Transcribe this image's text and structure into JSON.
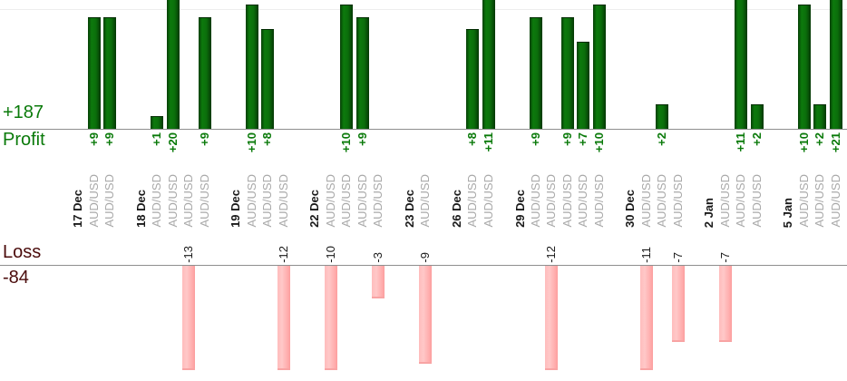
{
  "profit_panel": {
    "total": "+187",
    "label": "Profit"
  },
  "loss_panel": {
    "label": "Loss",
    "total": "-84"
  },
  "colors": {
    "profit_bar": "#0b720b",
    "profit_text": "#0a7a0a",
    "loss_bar": "#ffb3b3",
    "loss_heading_text": "#4a0b0b",
    "loss_value_text": "#1a1a1a",
    "date_text": "#1a1a1a",
    "pair_text": "#a9a9a9",
    "axis_line": "#8f8f8f",
    "gridline": "#ededed"
  },
  "chart_data": {
    "type": "bar",
    "title": "",
    "legend": [
      "Profit",
      "Loss"
    ],
    "profit_total": 187,
    "loss_total": -84,
    "groups": [
      {
        "date": "17 Dec",
        "trades": [
          {
            "pair": "AUD/USD",
            "value": 9
          },
          {
            "pair": "AUD/USD",
            "value": 9
          }
        ]
      },
      {
        "date": "18 Dec",
        "trades": [
          {
            "pair": "AUD/USD",
            "value": 1
          },
          {
            "pair": "AUD/USD",
            "value": 20
          },
          {
            "pair": "AUD/USD",
            "value": -13
          },
          {
            "pair": "AUD/USD",
            "value": 9
          }
        ]
      },
      {
        "date": "19 Dec",
        "trades": [
          {
            "pair": "AUD/USD",
            "value": 10
          },
          {
            "pair": "AUD/USD",
            "value": 8
          },
          {
            "pair": "AUD/USD",
            "value": -12
          }
        ]
      },
      {
        "date": "22 Dec",
        "trades": [
          {
            "pair": "AUD/USD",
            "value": -10
          },
          {
            "pair": "AUD/USD",
            "value": 10
          },
          {
            "pair": "AUD/USD",
            "value": 9
          },
          {
            "pair": "AUD/USD",
            "value": -3
          }
        ]
      },
      {
        "date": "23 Dec",
        "trades": [
          {
            "pair": "AUD/USD",
            "value": -9
          }
        ]
      },
      {
        "date": "26 Dec",
        "trades": [
          {
            "pair": "AUD/USD",
            "value": 8
          },
          {
            "pair": "AUD/USD",
            "value": 11
          }
        ]
      },
      {
        "date": "29 Dec",
        "trades": [
          {
            "pair": "AUD/USD",
            "value": 9
          },
          {
            "pair": "AUD/USD",
            "value": -12
          },
          {
            "pair": "AUD/USD",
            "value": 9
          },
          {
            "pair": "AUD/USD",
            "value": 7
          },
          {
            "pair": "AUD/USD",
            "value": 10
          }
        ]
      },
      {
        "date": "30 Dec",
        "trades": [
          {
            "pair": "AUD/USD",
            "value": -11
          },
          {
            "pair": "AUD/USD",
            "value": 2
          },
          {
            "pair": "AUD/USD",
            "value": -7
          }
        ]
      },
      {
        "date": "2 Jan",
        "trades": [
          {
            "pair": "AUD/USD",
            "value": -7
          },
          {
            "pair": "AUD/USD",
            "value": 11
          },
          {
            "pair": "AUD/USD",
            "value": 2
          }
        ]
      },
      {
        "date": "5 Jan",
        "trades": [
          {
            "pair": "AUD/USD",
            "value": 10
          },
          {
            "pair": "AUD/USD",
            "value": 2
          },
          {
            "pair": "AUD/USD",
            "value": 21
          }
        ]
      }
    ]
  }
}
